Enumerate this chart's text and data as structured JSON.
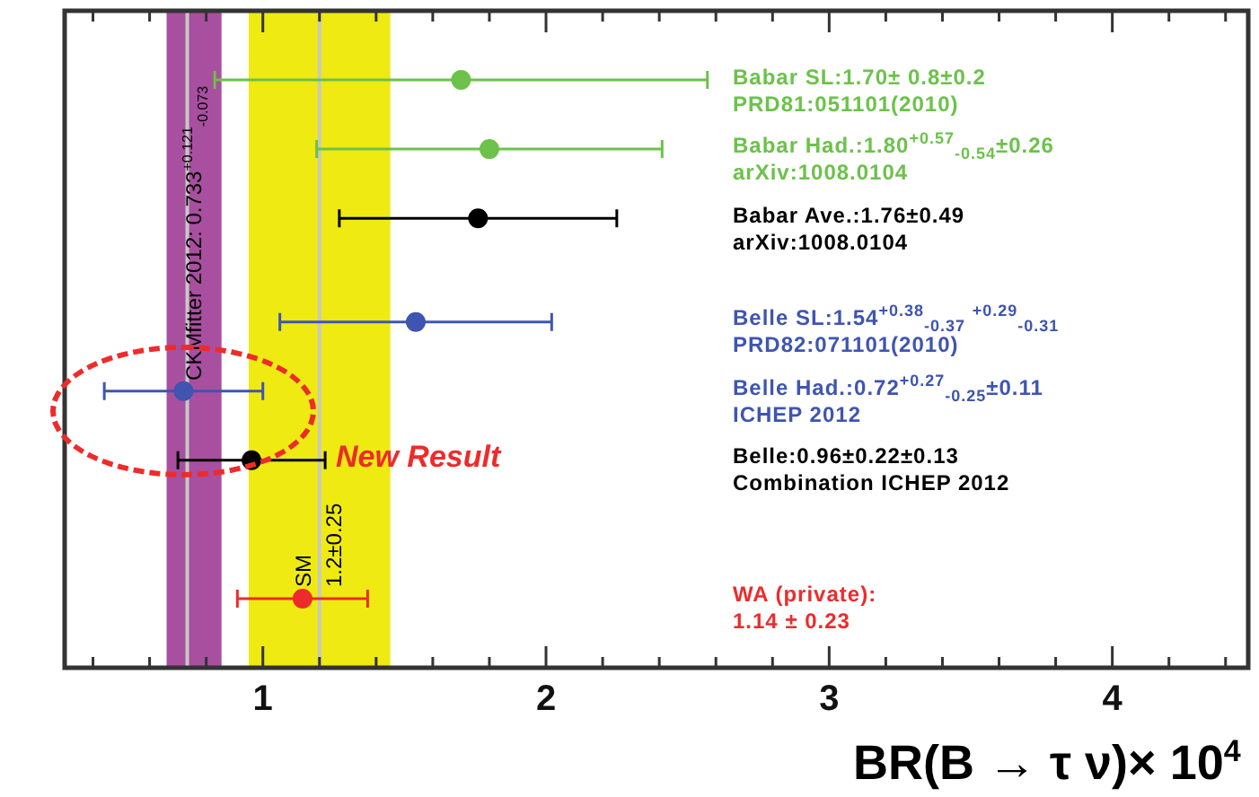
{
  "chart_data": {
    "type": "scatter",
    "orientation": "horizontal",
    "xlabel": "BR(B → τ ν)× 10$^{4}$",
    "categories": [
      null,
      null,
      null,
      null,
      null,
      null,
      null,
      null,
      null,
      null,
      null,
      null,
      null,
      null,
      null,
      null,
      null,
      null,
      null,
      null
    ],
    "xlim": [
      0.3,
      4.48
    ],
    "xticks": [
      {
        "value": 0.4,
        "label": null
      },
      {
        "value": 0.6,
        "label": null
      },
      {
        "value": 0.8,
        "label": null
      },
      1,
      {
        "value": 1.2,
        "label": null
      },
      {
        "value": 1.4,
        "label": null
      },
      {
        "value": 1.6,
        "label": null
      },
      {
        "value": 1.8,
        "label": null
      },
      2,
      {
        "value": 2.2,
        "label": null
      },
      {
        "value": 2.4,
        "label": null
      },
      {
        "value": 2.6,
        "label": null
      },
      {
        "value": 2.8,
        "label": null
      },
      3,
      {
        "value": 3.2,
        "label": null
      },
      {
        "value": 3.4,
        "label": null
      },
      {
        "value": 3.6,
        "label": null
      },
      {
        "value": 3.8,
        "label": null
      },
      4,
      {
        "value": 4.2,
        "label": null
      },
      {
        "value": 4.4,
        "label": null
      }
    ],
    "tick_labels": "x",
    "grid": false,
    "legend": false,
    "marker": "circle",
    "series": [
      {
        "name": "Babar SL:1.70± 0.8±0.2\nPRD81:051101(2010)",
        "color": "#6cc24a",
        "values": [
          null,
          null,
          1.7,
          null,
          null,
          null,
          null,
          null,
          null,
          null,
          null,
          null,
          null,
          null,
          null,
          null,
          null,
          null,
          null,
          null
        ],
        "errors": [
          null,
          null,
          0.87,
          null,
          null,
          null,
          null,
          null,
          null,
          null,
          null,
          null,
          null,
          null,
          null,
          null,
          null,
          null,
          null,
          null
        ]
      },
      {
        "name": "Babar Had.:1.80$^{+0.57}$$_{-0.54}$±0.26\narXiv:1008.0104",
        "color": "#6cc24a",
        "values": [
          null,
          null,
          null,
          null,
          1.8,
          null,
          null,
          null,
          null,
          null,
          null,
          null,
          null,
          null,
          null,
          null,
          null,
          null,
          null,
          null
        ],
        "errors": [
          null,
          null,
          null,
          null,
          0.61,
          null,
          null,
          null,
          null,
          null,
          null,
          null,
          null,
          null,
          null,
          null,
          null,
          null,
          null,
          null
        ]
      },
      {
        "name": "Babar Ave.:1.76±0.49\narXiv:1008.0104",
        "color": "#000000",
        "values": [
          null,
          null,
          null,
          null,
          null,
          null,
          1.76,
          null,
          null,
          null,
          null,
          null,
          null,
          null,
          null,
          null,
          null,
          null,
          null,
          null
        ],
        "errors": [
          null,
          null,
          null,
          null,
          null,
          null,
          0.49,
          null,
          null,
          null,
          null,
          null,
          null,
          null,
          null,
          null,
          null,
          null,
          null,
          null
        ]
      },
      {
        "name": "Belle SL:1.54$^{+0.38}$$_{-0.37}$ $^{+0.29}$$_{-0.31}$\nPRD82:071101(2010)",
        "color": "#3f55b0",
        "values": [
          null,
          null,
          null,
          null,
          null,
          null,
          null,
          null,
          null,
          1.54,
          null,
          null,
          null,
          null,
          null,
          null,
          null,
          null,
          null,
          null
        ],
        "errors": [
          null,
          null,
          null,
          null,
          null,
          null,
          null,
          null,
          null,
          0.48,
          null,
          null,
          null,
          null,
          null,
          null,
          null,
          null,
          null,
          null
        ]
      },
      {
        "name": "Belle Had.:0.72$^{+0.27}$$_{-0.25}$±0.11\nICHEP 2012",
        "color": "#3f55b0",
        "values": [
          null,
          null,
          null,
          null,
          null,
          null,
          null,
          null,
          null,
          null,
          null,
          0.72,
          null,
          null,
          null,
          null,
          null,
          null,
          null,
          null
        ],
        "errors": [
          null,
          null,
          null,
          null,
          null,
          null,
          null,
          null,
          null,
          null,
          null,
          0.28,
          null,
          null,
          null,
          null,
          null,
          null,
          null,
          null
        ]
      },
      {
        "name": "Belle:0.96±0.22±0.13\nCombination ICHEP 2012",
        "color": "#000000",
        "values": [
          null,
          null,
          null,
          null,
          null,
          null,
          null,
          null,
          null,
          null,
          null,
          null,
          null,
          0.96,
          null,
          null,
          null,
          null,
          null,
          null
        ],
        "errors": [
          null,
          null,
          null,
          null,
          null,
          null,
          null,
          null,
          null,
          null,
          null,
          null,
          null,
          0.26,
          null,
          null,
          null,
          null,
          null,
          null
        ]
      },
      {
        "name": "WA (private):\n1.14 ± 0.23",
        "color": "#ee2b2b",
        "values": [
          null,
          null,
          null,
          null,
          null,
          null,
          null,
          null,
          null,
          null,
          null,
          null,
          null,
          null,
          null,
          null,
          null,
          1.14,
          null,
          null
        ],
        "errors": [
          null,
          null,
          null,
          null,
          null,
          null,
          null,
          null,
          null,
          null,
          null,
          null,
          null,
          null,
          null,
          null,
          null,
          0.23,
          null,
          null
        ]
      }
    ],
    "bands": [
      {
        "axis": "x",
        "from": 0.66,
        "to": 0.854,
        "label": "CKMfitter 2012: 0.733$^{+0.121}$$_{-0.073}$",
        "color": "#a94f9f"
      },
      {
        "axis": "x",
        "from": 0.95,
        "to": 1.45,
        "label": "SM\n1.2±0.25",
        "color": "#eeea12"
      }
    ],
    "ref_lines": [
      {
        "axis": "x",
        "value": 0.733,
        "color": "#c8c8c8"
      },
      {
        "axis": "x",
        "value": 1.2,
        "color": "#c8c8c8"
      }
    ],
    "annotations": [
      "New Result"
    ]
  }
}
